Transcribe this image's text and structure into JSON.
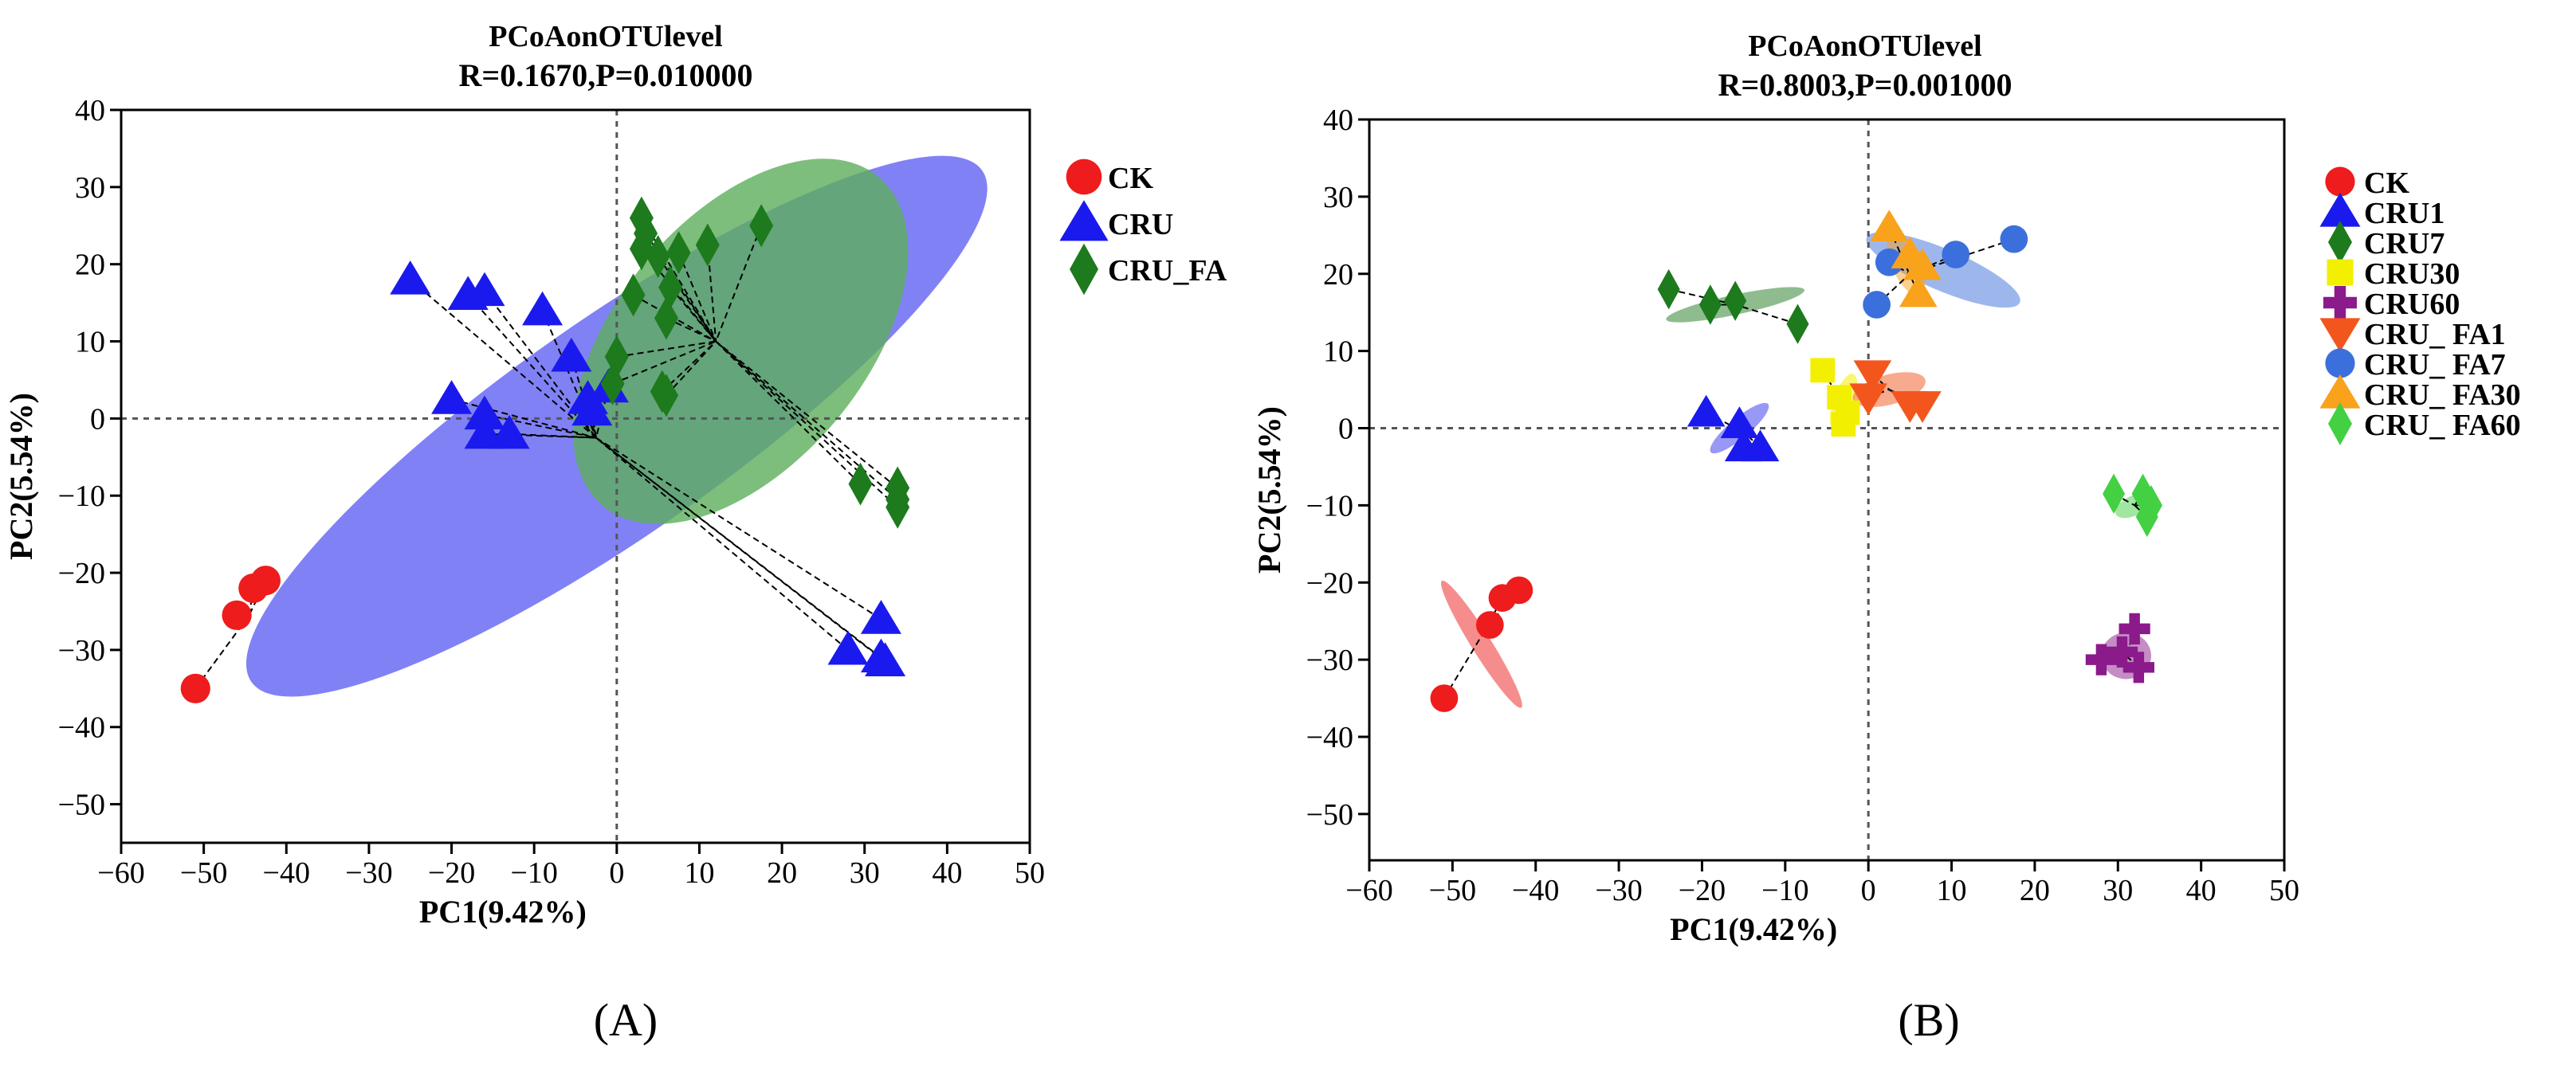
{
  "colors": {
    "CK": "#ee1c1c",
    "CRU": "#1a1aee",
    "CRU_FA": "#1d7a1d",
    "CRU1": "#1a1aee",
    "CRU7": "#1d7a1d",
    "CRU30": "#f2ef00",
    "CRU60": "#8b1a8b",
    "CRU_FA1": "#f2561d",
    "CRU_FA7": "#3b6fdc",
    "CRU_FA30": "#f9a21c",
    "CRU_FA60": "#43d043"
  },
  "chart_data": [
    {
      "type": "scatter",
      "panel_label": "(A)",
      "title": "PCoAonOTUlevel",
      "subtitle": "R=0.1670,P=0.010000",
      "xlabel": "PC1(9.42%)",
      "ylabel": "PC2(5.54%)",
      "xlim": [
        -60,
        50
      ],
      "ylim": [
        -55,
        40
      ],
      "xticks": [
        -60,
        -50,
        -40,
        -30,
        -20,
        -10,
        0,
        10,
        20,
        30,
        40,
        50
      ],
      "yticks": [
        -50,
        -40,
        -30,
        -20,
        -10,
        0,
        10,
        20,
        30,
        40
      ],
      "xtick_labels": [
        "−60",
        "−50",
        "−40",
        "−30",
        "−20",
        "−10",
        "0",
        "10",
        "20",
        "30",
        "40",
        "50"
      ],
      "ytick_labels": [
        "−50",
        "−40",
        "−30",
        "−20",
        "−10",
        "0",
        "10",
        "20",
        "30",
        "40"
      ],
      "legend_position": "right",
      "ellipses": [
        {
          "group": "CRU",
          "cx": 0,
          "cy": -1,
          "rx": 54,
          "ry": 13,
          "angle": -35,
          "color": "#6b6bf5",
          "opacity": 0.85
        },
        {
          "group": "CRU_FA",
          "cx": 15,
          "cy": 10,
          "rx": 26,
          "ry": 15,
          "angle": -50,
          "color": "#5cae5c",
          "opacity": 0.8
        }
      ],
      "series": [
        {
          "name": "CK",
          "label": "CK",
          "marker": "circle",
          "centroid": [
            -44.5,
            -25.5
          ],
          "points": [
            [
              -51,
              -35
            ],
            [
              -46,
              -25.5
            ],
            [
              -44,
              -22
            ],
            [
              -42.5,
              -21
            ]
          ]
        },
        {
          "name": "CRU",
          "label": "CRU",
          "marker": "triangle",
          "centroid": [
            -2.5,
            -2.5
          ],
          "points": [
            [
              -25,
              18
            ],
            [
              -18,
              16
            ],
            [
              -16,
              16.5
            ],
            [
              -9,
              14
            ],
            [
              -5.5,
              8
            ],
            [
              -20,
              2.5
            ],
            [
              -16,
              0.5
            ],
            [
              -16,
              -2
            ],
            [
              -13,
              -2
            ],
            [
              -3.5,
              2.5
            ],
            [
              -3,
              1
            ],
            [
              -1,
              4
            ],
            [
              28,
              -30
            ],
            [
              32,
              -26
            ],
            [
              32,
              -31
            ],
            [
              32.5,
              -31.5
            ]
          ]
        },
        {
          "name": "CRU_FA",
          "label": "CRU_FA",
          "marker": "diamond",
          "centroid": [
            12,
            10
          ],
          "points": [
            [
              3,
              26
            ],
            [
              3.5,
              24
            ],
            [
              3,
              22
            ],
            [
              5,
              21
            ],
            [
              7.5,
              21.5
            ],
            [
              11,
              22.5
            ],
            [
              17.5,
              25
            ],
            [
              6.5,
              17
            ],
            [
              2,
              16
            ],
            [
              6,
              13
            ],
            [
              0,
              8
            ],
            [
              -0.5,
              4.5
            ],
            [
              5.5,
              3.5
            ],
            [
              6,
              3
            ],
            [
              29.5,
              -8.5
            ],
            [
              34,
              -9
            ],
            [
              34,
              -10.5
            ],
            [
              34,
              -11.5
            ]
          ]
        }
      ]
    },
    {
      "type": "scatter",
      "panel_label": "(B)",
      "title": "PCoAonOTUlevel",
      "subtitle": "R=0.8003,P=0.001000",
      "xlabel": "PC1(9.42%)",
      "ylabel": "PC2(5.54%)",
      "xlim": [
        -60,
        50
      ],
      "ylim": [
        -55,
        40
      ],
      "xticks": [
        -60,
        -50,
        -40,
        -30,
        -20,
        -10,
        0,
        10,
        20,
        30,
        40,
        50
      ],
      "yticks": [
        -50,
        -40,
        -30,
        -20,
        -10,
        0,
        10,
        20,
        30,
        40
      ],
      "xtick_labels": [
        "−60",
        "−50",
        "−40",
        "−30",
        "−20",
        "−10",
        "0",
        "10",
        "20",
        "30",
        "40",
        "50"
      ],
      "ytick_labels": [
        "−50",
        "−40",
        "−30",
        "−20",
        "−10",
        "0",
        "10",
        "20",
        "30",
        "40"
      ],
      "legend_position": "right",
      "ellipses": [
        {
          "group": "CK",
          "cx": -46.5,
          "cy": -28,
          "rx": 9,
          "ry": 1.2,
          "angle": 58,
          "color": "#ee1c1c",
          "opacity": 0.5
        },
        {
          "group": "CRU1",
          "cx": -15.5,
          "cy": 0,
          "rx": 4.5,
          "ry": 1.2,
          "angle": -40,
          "color": "#1a1aee",
          "opacity": 0.45
        },
        {
          "group": "CRU7",
          "cx": -16,
          "cy": 16,
          "rx": 8.5,
          "ry": 1.2,
          "angle": -12,
          "color": "#1d7a1d",
          "opacity": 0.5
        },
        {
          "group": "CRU30",
          "cx": -3,
          "cy": 3.5,
          "rx": 3.5,
          "ry": 1.2,
          "angle": -70,
          "color": "#f2ef00",
          "opacity": 0.55
        },
        {
          "group": "CRU60",
          "cx": 31,
          "cy": -29.5,
          "rx": 3,
          "ry": 2.8,
          "angle": 0,
          "color": "#8b1a8b",
          "opacity": 0.5
        },
        {
          "group": "CRU_FA1",
          "cx": 2.5,
          "cy": 5,
          "rx": 4.5,
          "ry": 1.8,
          "angle": -15,
          "color": "#f2561d",
          "opacity": 0.5
        },
        {
          "group": "CRU_FA7",
          "cx": 9,
          "cy": 20.5,
          "rx": 10,
          "ry": 2.5,
          "angle": 23,
          "color": "#3b6fdc",
          "opacity": 0.5
        },
        {
          "group": "CRU_FA30",
          "cx": 4.5,
          "cy": 21,
          "rx": 4,
          "ry": 1.6,
          "angle": 63,
          "color": "#f9a21c",
          "opacity": 0.5
        },
        {
          "group": "CRU_FA60",
          "cx": 32,
          "cy": -10,
          "rx": 2.5,
          "ry": 1.2,
          "angle": -25,
          "color": "#43d043",
          "opacity": 0.5
        }
      ],
      "series": [
        {
          "name": "CK",
          "label": "CK",
          "marker": "circle",
          "centroid": [
            -46,
            -26
          ],
          "points": [
            [
              -51,
              -35
            ],
            [
              -45.5,
              -25.5
            ],
            [
              -44,
              -22
            ],
            [
              -42,
              -21
            ]
          ]
        },
        {
          "name": "CRU1",
          "label": "CRU1",
          "marker": "triangle",
          "centroid": [
            -15,
            -0.5
          ],
          "points": [
            [
              -19.5,
              2
            ],
            [
              -15.5,
              0.5
            ],
            [
              -15,
              -2.5
            ],
            [
              -13,
              -2.5
            ]
          ]
        },
        {
          "name": "CRU7",
          "label": "CRU7",
          "marker": "diamond",
          "centroid": [
            -16,
            16
          ],
          "points": [
            [
              -24,
              18
            ],
            [
              -19,
              16
            ],
            [
              -16,
              16.5
            ],
            [
              -8.5,
              13.5
            ]
          ]
        },
        {
          "name": "CRU30",
          "label": "CRU30",
          "marker": "square",
          "centroid": [
            -3,
            3
          ],
          "points": [
            [
              -5.5,
              7.5
            ],
            [
              -3.5,
              4
            ],
            [
              -2.5,
              2
            ],
            [
              -3,
              0.5
            ]
          ]
        },
        {
          "name": "CRU60",
          "label": "CRU60",
          "marker": "cross",
          "centroid": [
            31,
            -29.5
          ],
          "points": [
            [
              28,
              -30
            ],
            [
              32,
              -26
            ],
            [
              32.5,
              -31
            ],
            [
              30.5,
              -29
            ]
          ]
        },
        {
          "name": "CRU_FA1",
          "label": "CRU_ FA1",
          "marker": "triangle-down",
          "centroid": [
            2.5,
            5
          ],
          "points": [
            [
              0,
              4
            ],
            [
              0.5,
              7
            ],
            [
              5,
              3
            ],
            [
              6.5,
              3
            ]
          ]
        },
        {
          "name": "CRU_FA7",
          "label": "CRU_ FA7",
          "marker": "circle",
          "centroid": [
            5,
            20
          ],
          "points": [
            [
              1,
              16
            ],
            [
              2.5,
              21.5
            ],
            [
              10.5,
              22.5
            ],
            [
              17.5,
              24.5
            ]
          ]
        },
        {
          "name": "CRU_FA30",
          "label": "CRU_ FA30",
          "marker": "triangle",
          "centroid": [
            4.5,
            21
          ],
          "points": [
            [
              2.5,
              26
            ],
            [
              5,
              22.5
            ],
            [
              6.5,
              21
            ],
            [
              6,
              17.5
            ]
          ]
        },
        {
          "name": "CRU_FA60",
          "label": "CRU_ FA60",
          "marker": "diamond",
          "centroid": [
            32,
            -10
          ],
          "points": [
            [
              29.5,
              -8.5
            ],
            [
              33,
              -8.5
            ],
            [
              34,
              -10
            ],
            [
              33.5,
              -11.5
            ]
          ]
        }
      ]
    }
  ]
}
